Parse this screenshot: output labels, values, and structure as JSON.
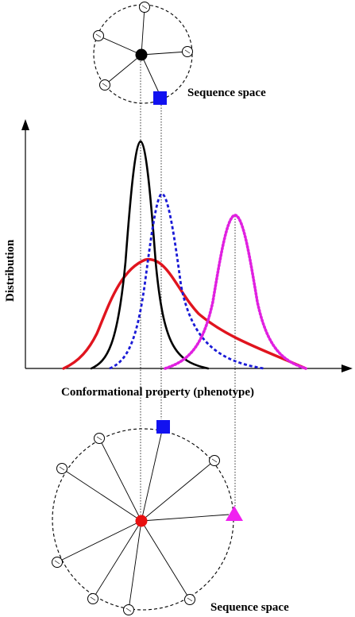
{
  "labels": {
    "top_sequence_space": "Sequence space",
    "bottom_sequence_space": "Sequence space",
    "x_axis": "Conformational property (phenotype)",
    "y_axis": "Distribution"
  },
  "colors": {
    "black_curve": "#000000",
    "red_curve": "#e0141e",
    "blue_curve": "#1a1ad6",
    "magenta_curve": "#e020e0",
    "blue_square": "#1212f0",
    "red_dot": "#e81010",
    "magenta_triangle": "#f020f0"
  },
  "icons": {
    "top_center": "filled-black-circle",
    "top_marker": "blue-square",
    "bottom_center": "filled-red-circle",
    "bottom_square": "blue-square",
    "bottom_triangle": "magenta-triangle",
    "neighbor": "open-circle"
  }
}
